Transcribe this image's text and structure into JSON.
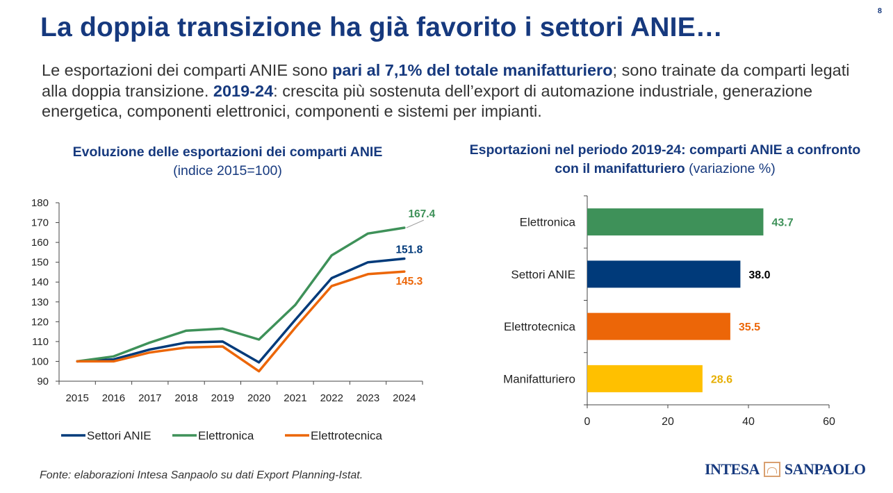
{
  "slide": {
    "title": "La doppia transizione ha già favorito i settori ANIE…",
    "page_number": "8",
    "intro": {
      "part1": "Le esportazioni dei comparti ANIE sono ",
      "bold1": "pari al 7,1% del totale manifatturiero",
      "part2": "; sono trainate da comparti legati alla doppia transizione. ",
      "bold2": "2019-24",
      "part3": ": crescita più sostenuta dell’export di automazione industriale, generazione energetica, componenti elettronici, componenti e sistemi per impianti."
    },
    "source": "Fonte: elaborazioni Intesa Sanpaolo su dati Export Planning-Istat.",
    "logo": {
      "left_word": "INTESA",
      "right_word": "SANPAOLO"
    }
  },
  "chart_data": [
    {
      "type": "line",
      "title": "Evoluzione delle esportazioni dei comparti ANIE",
      "subtitle": "(indice 2015=100)",
      "x": [
        "2015",
        "2016",
        "2017",
        "2018",
        "2019",
        "2020",
        "2021",
        "2022",
        "2023",
        "2024"
      ],
      "ylim": [
        90,
        180
      ],
      "yticks": [
        90,
        100,
        110,
        120,
        130,
        140,
        150,
        160,
        170,
        180
      ],
      "legend_position": "bottom",
      "series": [
        {
          "name": "Settori ANIE",
          "color": "#003a7a",
          "values": [
            100,
            101,
            106,
            109.5,
            110,
            99.5,
            121,
            142,
            150,
            151.8
          ],
          "end_label": "151.8"
        },
        {
          "name": "Elettronica",
          "color": "#3e9159",
          "values": [
            100,
            102.5,
            109.5,
            115.5,
            116.5,
            111,
            128.5,
            153.5,
            164.5,
            167.4
          ],
          "end_label": "167.4"
        },
        {
          "name": "Elettrotecnica",
          "color": "#ec6608",
          "values": [
            100,
            100,
            104.5,
            107,
            107.5,
            95,
            117,
            138,
            144,
            145.3
          ],
          "end_label": "145.3"
        }
      ]
    },
    {
      "type": "bar",
      "orientation": "horizontal",
      "title": "Esportazioni nel periodo 2019-24: comparti ANIE a confronto con il manifatturiero",
      "subtitle": "(variazione %)",
      "categories": [
        "Elettronica",
        "Settori ANIE",
        "Elettrotecnica",
        "Manifatturiero"
      ],
      "values": [
        43.7,
        38.0,
        35.5,
        28.6
      ],
      "labels": [
        "43.7",
        "38.0",
        "35.5",
        "28.6"
      ],
      "colors": [
        "#3e9159",
        "#003a7a",
        "#ec6608",
        "#ffc000"
      ],
      "label_colors": [
        "#3e9159",
        "#000000",
        "#ec6608",
        "#e6ae00"
      ],
      "xlim": [
        0,
        60
      ],
      "xticks": [
        0,
        20,
        40,
        60
      ]
    }
  ]
}
